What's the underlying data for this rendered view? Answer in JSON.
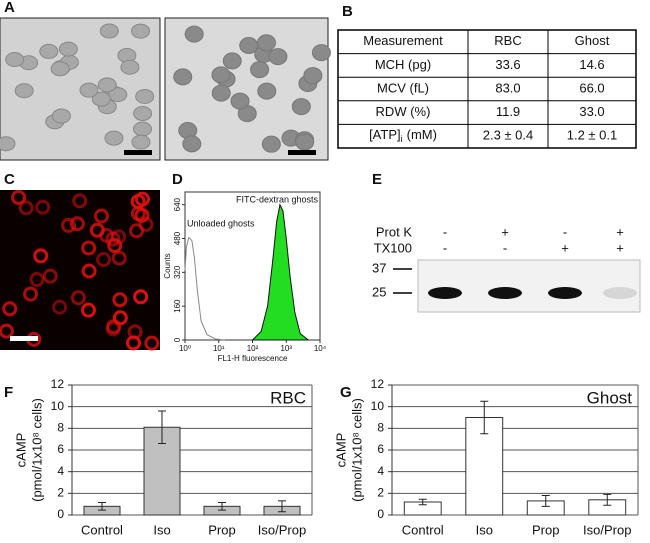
{
  "panel_labels": [
    "A",
    "B",
    "C",
    "D",
    "E",
    "F",
    "G"
  ],
  "table": {
    "header": [
      "Measurement",
      "RBC",
      "Ghost"
    ],
    "rows": [
      [
        "MCH (pg)",
        "33.6",
        "14.6"
      ],
      [
        "MCV (fL)",
        "83.0",
        "66.0"
      ],
      [
        "RDW (%)",
        "11.9",
        "33.0"
      ],
      [
        {
          "text": "[ATP]",
          "sub": "i",
          "unit": "(mM)"
        },
        "2.3 ± 0.4",
        "1.2 ± 0.1"
      ]
    ]
  },
  "blot": {
    "rows": [
      {
        "label": "Prot K",
        "marks": [
          "-",
          "+",
          "-",
          "+"
        ]
      },
      {
        "label": "TX100",
        "marks": [
          "-",
          "-",
          "+",
          "+"
        ]
      }
    ],
    "mw_markers": [
      "37",
      "25"
    ]
  },
  "chart_data": [
    {
      "type": "histogram",
      "xlabel": "FL1-H fluorescence",
      "ylabel": "Counts",
      "log_x": true,
      "annotations": [
        "Unloaded ghosts",
        "FITC-dextran ghosts"
      ],
      "xlim": [
        1,
        10000
      ],
      "ylim": [
        0,
        700
      ],
      "xticks": [
        {
          "value": 1,
          "label": "10⁰"
        },
        {
          "value": 10,
          "label": "10¹"
        },
        {
          "value": 100,
          "label": "10²"
        },
        {
          "value": 1000,
          "label": "10³"
        },
        {
          "value": 10000,
          "label": "10⁴"
        }
      ],
      "yticks": [
        0,
        160,
        320,
        480,
        640
      ],
      "series": [
        {
          "name": "Unloaded ghosts",
          "color": "#888888",
          "filled": false,
          "x": [
            1,
            1.1,
            1.3,
            1.6,
            1.9,
            2.3,
            3,
            4.5,
            8,
            15
          ],
          "values": [
            330,
            440,
            485,
            470,
            390,
            240,
            90,
            25,
            5,
            0
          ]
        },
        {
          "name": "FITC-dextran ghosts",
          "color": "#22dd22",
          "filled": true,
          "x": [
            100,
            180,
            280,
            400,
            520,
            650,
            800,
            1000,
            1300,
            1800,
            2600,
            4500
          ],
          "values": [
            0,
            40,
            160,
            380,
            560,
            640,
            610,
            480,
            300,
            130,
            30,
            0
          ]
        }
      ]
    },
    {
      "type": "bar",
      "annotation": "RBC",
      "ylabel": [
        "cAMP",
        "(pmol/1x10⁸ cells)"
      ],
      "categories": [
        "Control",
        "Iso",
        "Prop",
        "Iso/Prop"
      ],
      "values": [
        0.8,
        8.1,
        0.8,
        0.8
      ],
      "errors": [
        0.35,
        1.5,
        0.35,
        0.5
      ],
      "color": "#c0c0c0",
      "ylim": [
        0,
        12
      ],
      "yticks": [
        0,
        2,
        4,
        6,
        8,
        10,
        12
      ],
      "grid": true
    },
    {
      "type": "bar",
      "annotation": "Ghost",
      "ylabel": [
        "cAMP",
        "(pmol/1x10⁸ cells)"
      ],
      "categories": [
        "Control",
        "Iso",
        "Prop",
        "Iso/Prop"
      ],
      "values": [
        1.2,
        9.0,
        1.3,
        1.4
      ],
      "errors": [
        0.25,
        1.5,
        0.5,
        0.5
      ],
      "color": "#ffffff",
      "ylim": [
        0,
        12
      ],
      "yticks": [
        0,
        2,
        4,
        6,
        8,
        10,
        12
      ],
      "grid": true
    }
  ]
}
